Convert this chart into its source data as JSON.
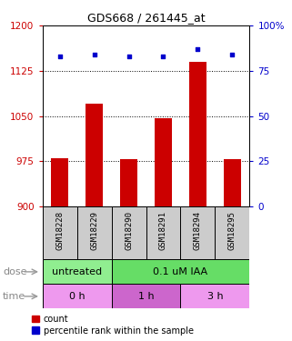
{
  "title": "GDS668 / 261445_at",
  "samples": [
    "GSM18228",
    "GSM18229",
    "GSM18290",
    "GSM18291",
    "GSM18294",
    "GSM18295"
  ],
  "bar_values": [
    980,
    1070,
    978,
    1047,
    1140,
    978
  ],
  "dot_values": [
    83,
    84,
    83,
    83,
    87,
    84
  ],
  "ylim_left": [
    900,
    1200
  ],
  "ylim_right": [
    0,
    100
  ],
  "yticks_left": [
    900,
    975,
    1050,
    1125,
    1200
  ],
  "yticks_right": [
    0,
    25,
    50,
    75,
    100
  ],
  "bar_color": "#cc0000",
  "dot_color": "#0000cc",
  "bar_bottom": 900,
  "dose_labels": [
    {
      "text": "untreated",
      "start": 0,
      "end": 2,
      "color": "#90ee90"
    },
    {
      "text": "0.1 uM IAA",
      "start": 2,
      "end": 6,
      "color": "#66dd66"
    }
  ],
  "time_labels": [
    {
      "text": "0 h",
      "start": 0,
      "end": 2,
      "color": "#ee99ee"
    },
    {
      "text": "1 h",
      "start": 2,
      "end": 4,
      "color": "#cc66cc"
    },
    {
      "text": "3 h",
      "start": 4,
      "end": 6,
      "color": "#ee99ee"
    }
  ],
  "legend_count_label": "count",
  "legend_pct_label": "percentile rank within the sample",
  "tick_color_left": "#cc0000",
  "tick_color_right": "#0000cc",
  "sample_box_color": "#cccccc",
  "bar_width": 0.5
}
